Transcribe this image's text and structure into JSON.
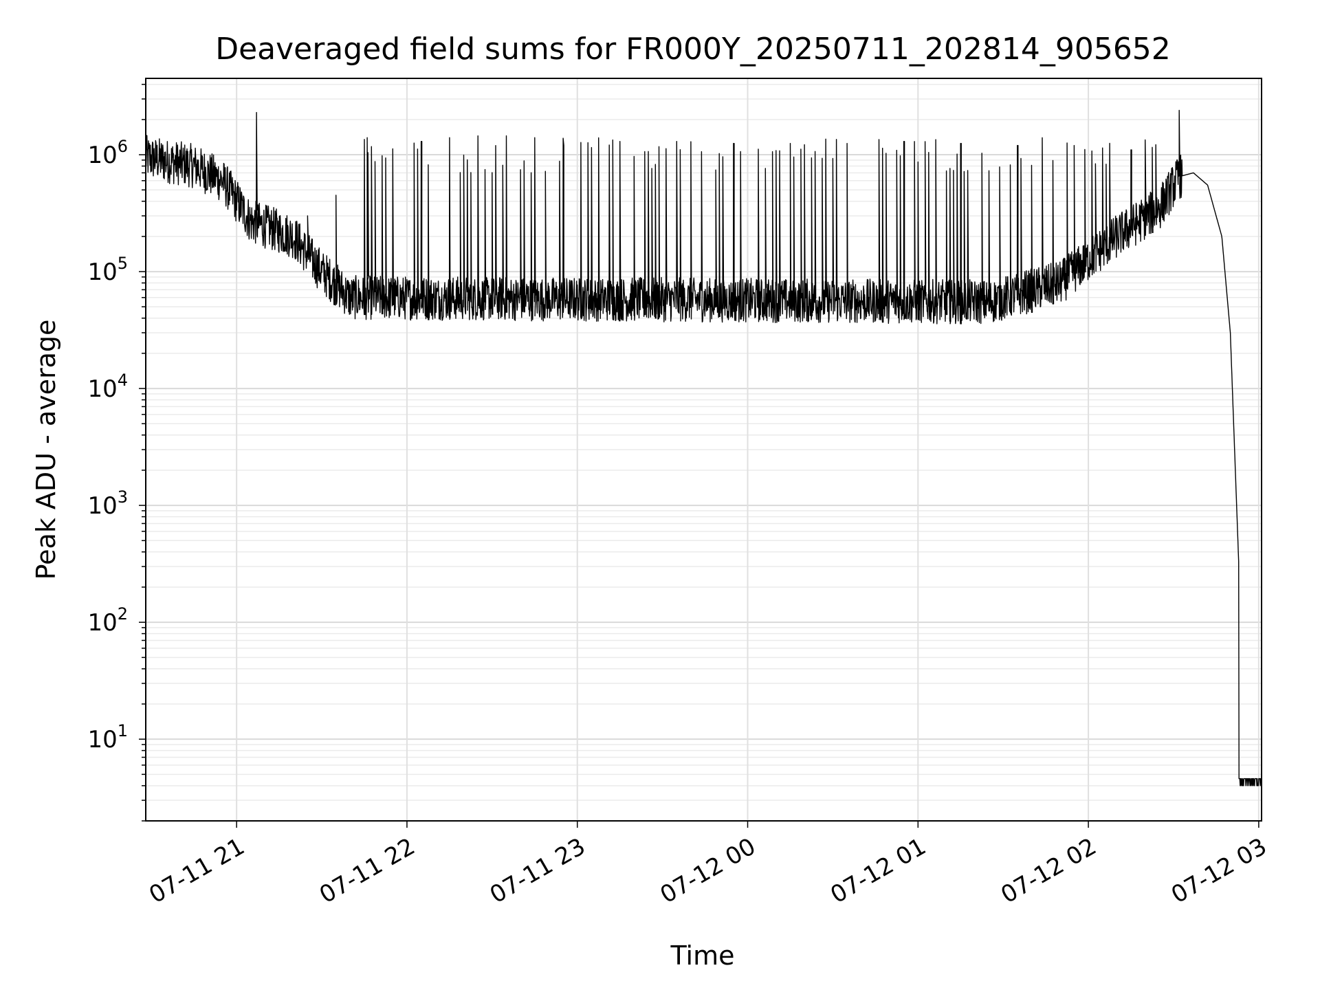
{
  "chart_data": {
    "type": "line",
    "title": "Deaveraged field sums for FR000Y_20250711_202814_905652",
    "xlabel": "Time",
    "ylabel": "Peak ADU - average",
    "yscale": "log",
    "ylim": [
      2,
      4500000
    ],
    "xlim": [
      "2025-07-11 20:28",
      "2025-07-12 03:01"
    ],
    "grid": true,
    "x_ticks": [
      {
        "t": "2025-07-11 21:00",
        "label": "07-11 21"
      },
      {
        "t": "2025-07-11 22:00",
        "label": "07-11 22"
      },
      {
        "t": "2025-07-11 23:00",
        "label": "07-11 23"
      },
      {
        "t": "2025-07-12 00:00",
        "label": "07-12 00"
      },
      {
        "t": "2025-07-12 01:00",
        "label": "07-12 01"
      },
      {
        "t": "2025-07-12 02:00",
        "label": "07-12 02"
      },
      {
        "t": "2025-07-12 03:00",
        "label": "07-12 03"
      }
    ],
    "y_ticks": [
      {
        "value": 10,
        "base": "10",
        "exp": "1"
      },
      {
        "value": 100,
        "base": "10",
        "exp": "2"
      },
      {
        "value": 1000,
        "base": "10",
        "exp": "3"
      },
      {
        "value": 10000,
        "base": "10",
        "exp": "4"
      },
      {
        "value": 100000,
        "base": "10",
        "exp": "5"
      },
      {
        "value": 1000000,
        "base": "10",
        "exp": "6"
      }
    ],
    "series": [
      {
        "color": "#000000",
        "baseline": [
          {
            "t": "2025-07-11 20:28",
            "y": 950000
          },
          {
            "t": "2025-07-11 20:45",
            "y": 800000
          },
          {
            "t": "2025-07-11 20:55",
            "y": 600000
          },
          {
            "t": "2025-07-11 21:05",
            "y": 270000
          },
          {
            "t": "2025-07-11 21:20",
            "y": 200000
          },
          {
            "t": "2025-07-11 21:30",
            "y": 100000
          },
          {
            "t": "2025-07-11 21:40",
            "y": 60000
          },
          {
            "t": "2025-07-12 01:25",
            "y": 55000
          },
          {
            "t": "2025-07-12 01:50",
            "y": 80000
          },
          {
            "t": "2025-07-12 02:10",
            "y": 200000
          },
          {
            "t": "2025-07-12 02:25",
            "y": 350000
          },
          {
            "t": "2025-07-12 02:32",
            "y": 650000
          },
          {
            "t": "2025-07-12 02:37",
            "y": 700000
          },
          {
            "t": "2025-07-12 02:42",
            "y": 550000
          },
          {
            "t": "2025-07-12 02:47",
            "y": 200000
          },
          {
            "t": "2025-07-12 02:50",
            "y": 30000
          },
          {
            "t": "2025-07-12 02:53",
            "y": 300
          },
          {
            "t": "2025-07-12 02:53",
            "y": 4
          },
          {
            "t": "2025-07-12 03:01",
            "y": 4
          }
        ],
        "spikes": [
          {
            "t": "2025-07-11 21:07",
            "y": 2300000
          },
          {
            "t": "2025-07-11 21:25",
            "y": 300000
          },
          {
            "t": "2025-07-11 21:35",
            "y": 450000
          },
          {
            "t": "2025-07-11 21:46",
            "y": 1400000
          },
          {
            "t": "2025-07-11 22:05",
            "y": 1300000
          },
          {
            "t": "2025-07-11 22:15",
            "y": 1400000
          },
          {
            "t": "2025-07-11 22:25",
            "y": 1450000
          },
          {
            "t": "2025-07-11 22:35",
            "y": 1450000
          },
          {
            "t": "2025-07-11 22:45",
            "y": 1400000
          },
          {
            "t": "2025-07-11 22:55",
            "y": 1200000
          },
          {
            "t": "2025-07-11 23:15",
            "y": 1300000
          },
          {
            "t": "2025-07-11 23:35",
            "y": 1300000
          },
          {
            "t": "2025-07-11 23:55",
            "y": 1250000
          },
          {
            "t": "2025-07-12 00:15",
            "y": 1250000
          },
          {
            "t": "2025-07-12 00:35",
            "y": 1250000
          },
          {
            "t": "2025-07-12 00:55",
            "y": 1300000
          },
          {
            "t": "2025-07-12 01:15",
            "y": 1250000
          },
          {
            "t": "2025-07-12 01:35",
            "y": 1200000
          },
          {
            "t": "2025-07-12 01:55",
            "y": 1200000
          },
          {
            "t": "2025-07-12 02:15",
            "y": 1100000
          },
          {
            "t": "2025-07-12 02:32",
            "y": 2400000
          }
        ]
      }
    ]
  }
}
